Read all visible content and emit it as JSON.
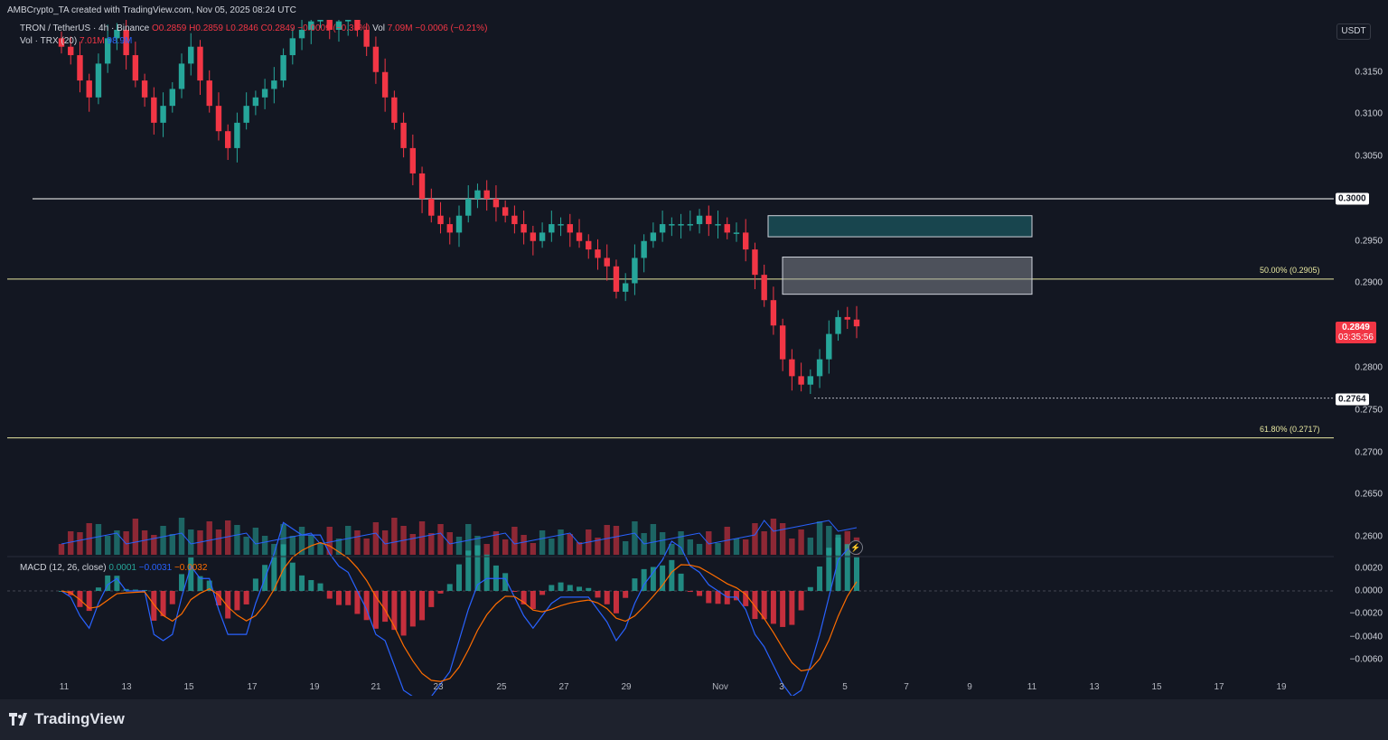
{
  "header": {
    "created": "AMBCrypto_TA created with TradingView.com, Nov 05, 2025 08:24 UTC"
  },
  "legend": {
    "symbol": "TRON / TetherUS · 4h · Binance",
    "ohlc": "O0.2859 H0.2859 L0.2846 C0.2849 −0.0009 (−0.31%)",
    "vol_label": "Vol",
    "vol_value": "7.09M",
    "vol_change": "−0.0006 (−0.21%)",
    "vol_ma_label": "Vol · TRX (20)",
    "vol_ma_v1": "7.01M",
    "vol_ma_v2": "98.9M",
    "macd_label": "MACD (12, 26, close)",
    "macd_hist": "0.0001",
    "macd_line": "−0.0031",
    "macd_signal": "−0.0032"
  },
  "price_axis": {
    "unit": "USDT",
    "labels": [
      "0.3150",
      "0.3100",
      "0.3050",
      "0.2950",
      "0.2900",
      "0.2800",
      "0.2750",
      "0.2700",
      "0.2650",
      "0.2600"
    ],
    "macd_labels": [
      "0.0020",
      "0.0000",
      "−0.0020",
      "−0.0040",
      "−0.0060"
    ],
    "tag_0300": "0.3000",
    "tag_current_price": "0.2849",
    "tag_countdown": "03:35:56",
    "tag_low": "0.2764"
  },
  "fib": {
    "level_50": "50.00% (0.2905)",
    "level_618": "61.80% (0.2717)"
  },
  "date_axis": {
    "labels": [
      "11",
      "13",
      "15",
      "17",
      "19",
      "21",
      "23",
      "25",
      "27",
      "29",
      "Nov",
      "3",
      "5",
      "7",
      "9",
      "11",
      "13",
      "15",
      "17",
      "19"
    ]
  },
  "footer": {
    "brand": "TradingView"
  },
  "colors": {
    "up": "#26a69a",
    "down": "#f23645",
    "background": "#131722",
    "macd_line": "#2962ff",
    "signal_line": "#ff6d00",
    "fib_line": "#e7e7a0"
  },
  "chart_data": {
    "type": "candlestick",
    "symbol": "TRXUSDT",
    "timeframe": "4h",
    "horizontal_levels": [
      0.3,
      0.2905,
      0.2717,
      0.2764
    ],
    "closes": [
      0.318,
      0.317,
      0.314,
      0.312,
      0.316,
      0.319,
      0.32,
      0.317,
      0.314,
      0.312,
      0.309,
      0.311,
      0.313,
      0.316,
      0.318,
      0.314,
      0.311,
      0.308,
      0.306,
      0.309,
      0.311,
      0.312,
      0.313,
      0.314,
      0.317,
      0.319,
      0.32,
      0.321,
      0.322,
      0.32,
      0.321,
      0.322,
      0.32,
      0.318,
      0.315,
      0.312,
      0.309,
      0.306,
      0.303,
      0.3,
      0.298,
      0.297,
      0.296,
      0.298,
      0.3,
      0.301,
      0.3,
      0.299,
      0.298,
      0.297,
      0.296,
      0.295,
      0.296,
      0.297,
      0.297,
      0.296,
      0.295,
      0.294,
      0.293,
      0.292,
      0.289,
      0.29,
      0.293,
      0.295,
      0.296,
      0.297,
      0.297,
      0.297,
      0.297,
      0.298,
      0.297,
      0.297,
      0.296,
      0.296,
      0.294,
      0.291,
      0.288,
      0.285,
      0.281,
      0.279,
      0.278,
      0.279,
      0.281,
      0.284,
      0.286,
      0.2857,
      0.2849
    ],
    "volume_ma_label": "Vol · TRX (20)",
    "macd": {
      "fast": 12,
      "slow": 26,
      "hist": 0.0001,
      "macd": -0.0031,
      "signal": -0.0032
    }
  }
}
